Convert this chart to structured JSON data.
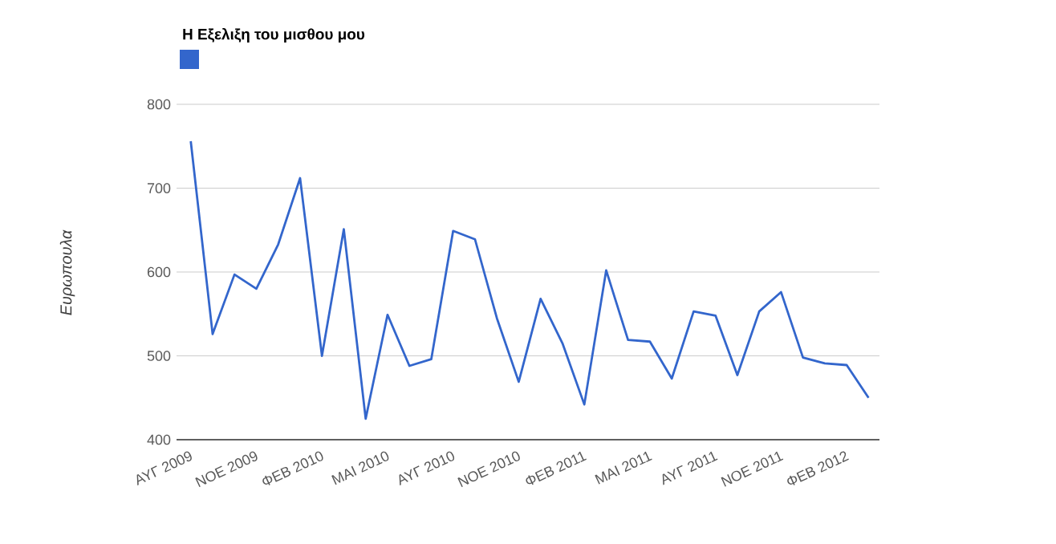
{
  "chart_data": {
    "type": "line",
    "title": "Η Εξελιξη του μισθου μου",
    "ylabel": "Ευρωπουλα",
    "categories": [
      "ΑΥΓ 2009",
      null,
      null,
      "ΝΟΕ 2009",
      null,
      null,
      "ΦΕΒ 2010",
      null,
      null,
      "ΜΑΙ 2010",
      null,
      null,
      "ΑΥΓ 2010",
      null,
      null,
      "ΝΟΕ 2010",
      null,
      null,
      "ΦΕΒ 2011",
      null,
      null,
      "ΜΑΙ 2011",
      null,
      null,
      "ΑΥΓ 2011",
      null,
      null,
      "ΝΟΕ 2011",
      null,
      null,
      "ΦΕΒ 2012",
      null
    ],
    "series": [
      {
        "color": "#3366cc",
        "values": [
          756,
          526,
          597,
          580,
          633,
          712,
          500,
          651,
          425,
          549,
          488,
          496,
          649,
          639,
          545,
          469,
          568,
          515,
          442,
          602,
          519,
          517,
          473,
          553,
          548,
          477,
          553,
          576,
          498,
          491,
          489,
          450
        ]
      }
    ],
    "ylim": [
      400,
      800
    ],
    "yticks": [
      400,
      500,
      600,
      700,
      800
    ],
    "grid": "y",
    "marker": "none",
    "line_style": "solid"
  }
}
